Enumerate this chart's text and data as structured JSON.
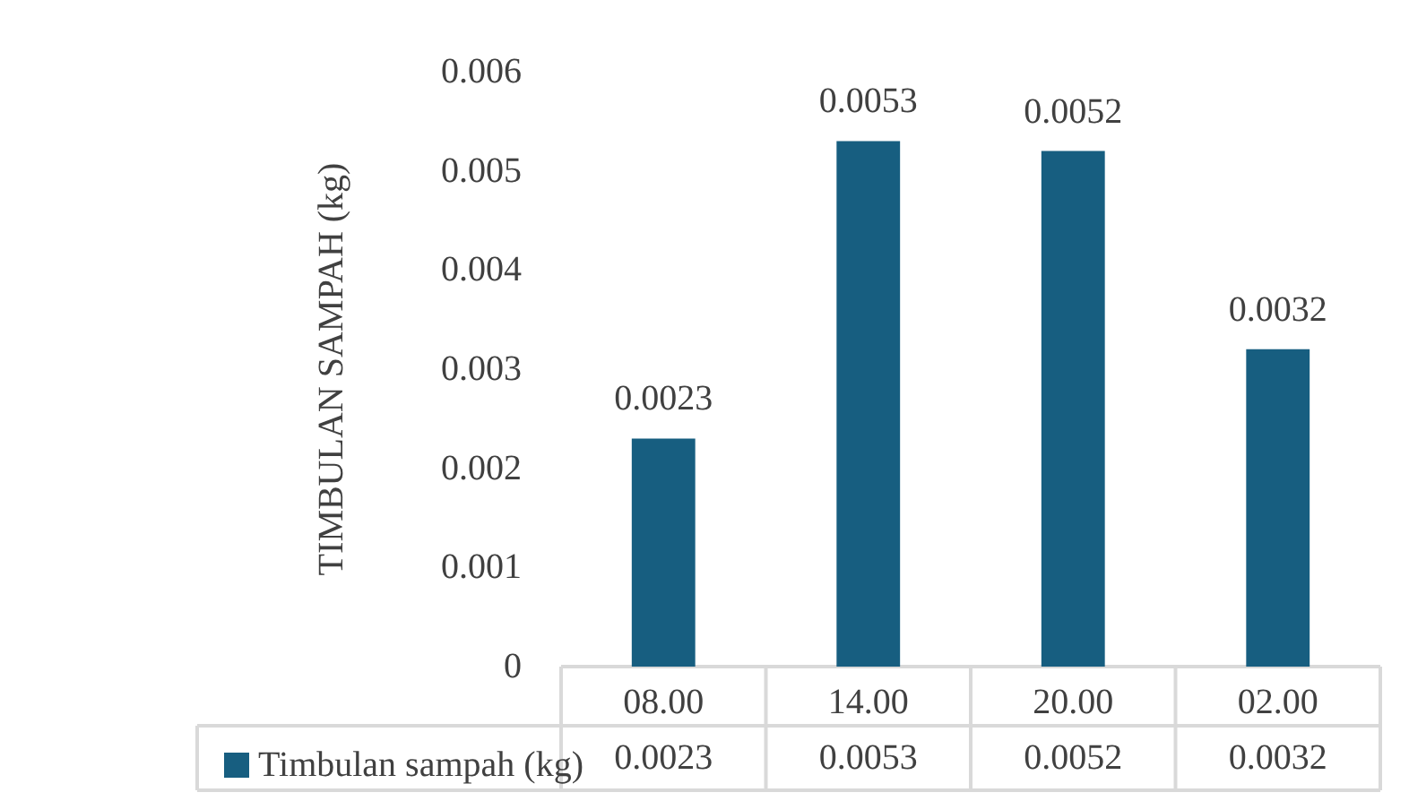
{
  "chart_data": {
    "type": "bar",
    "ylabel": "TIMBULAN SAMPAH (kg)",
    "categories": [
      "08.00",
      "14.00",
      "20.00",
      "02.00"
    ],
    "series": [
      {
        "name": "Timbulan sampah (kg)",
        "color": "#175e80",
        "values": [
          0.0023,
          0.0053,
          0.0052,
          0.0032
        ],
        "value_labels": [
          "0.0023",
          "0.0053",
          "0.0052",
          "0.0032"
        ]
      }
    ],
    "ylim": [
      0,
      0.006
    ],
    "yticks": [
      0,
      0.001,
      0.002,
      0.003,
      0.004,
      0.005,
      0.006
    ],
    "annotations": [
      "0.0023",
      "0.0053",
      "0.0052",
      "0.0032"
    ],
    "grid": false,
    "legend": "bottom left"
  }
}
